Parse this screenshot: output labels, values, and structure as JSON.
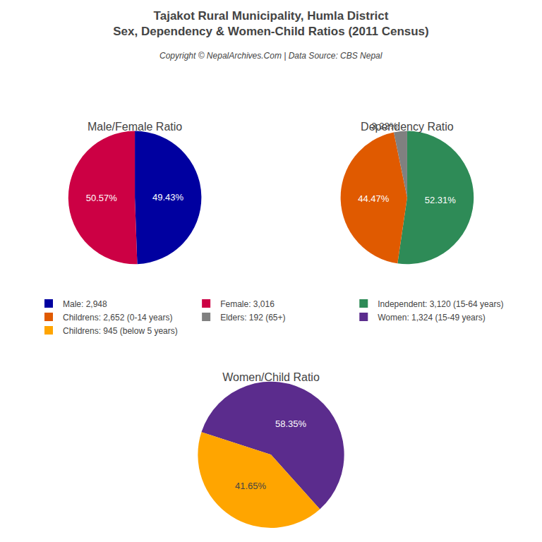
{
  "title": "Tajakot Rural Municipality, Humla District",
  "subtitle": "Sex, Dependency & Women-Child Ratios (2011 Census)",
  "annotations": [
    "Copyright © NepalArchives.Com | Data Source: CBS Nepal"
  ],
  "legend": "center",
  "chart_data": [
    {
      "type": "pie",
      "title": "Male/Female Ratio",
      "categories": [
        "Male: 2,948",
        "Female: 3,016"
      ],
      "values": [
        49.43,
        50.57
      ],
      "value_labels": [
        "49.43%",
        "50.57%"
      ],
      "colors": [
        "#0000A0",
        "#CC0044"
      ],
      "data_labels": true
    },
    {
      "type": "pie",
      "title": "Dependency Ratio",
      "categories": [
        "Independent: 3,120 (15-64 years)",
        "Childrens: 2,652 (0-14 years)",
        "Elders: 192 (65+)"
      ],
      "values": [
        52.31,
        44.47,
        3.22
      ],
      "value_labels": [
        "52.31%",
        "44.47%",
        "3.22%"
      ],
      "colors": [
        "#2E8B57",
        "#E05A00",
        "#808080"
      ],
      "data_labels": true
    },
    {
      "type": "pie",
      "title": "Women/Child Ratio",
      "categories": [
        "Women: 1,324 (15-49 years)",
        "Childrens: 945 (below 5 years)"
      ],
      "values": [
        58.35,
        41.65
      ],
      "value_labels": [
        "58.35%",
        "41.65%"
      ],
      "colors": [
        "#5B2C8D",
        "#FFA500"
      ],
      "data_labels": true
    }
  ]
}
